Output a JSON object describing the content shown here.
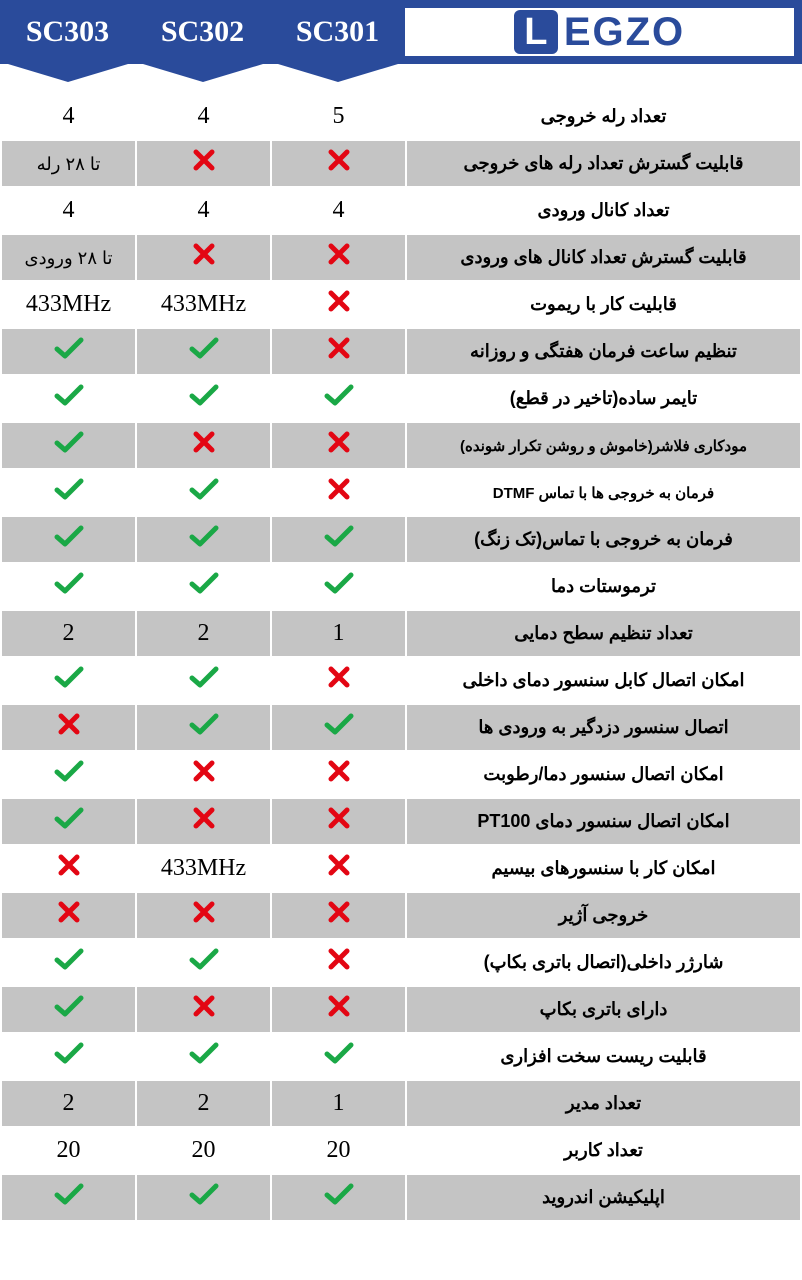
{
  "header": {
    "models": [
      "SC303",
      "SC302",
      "SC301"
    ],
    "brand_initial": "L",
    "brand_rest": "EGZO"
  },
  "colors": {
    "header_bg": "#2a4b9b",
    "grey_row": "#c4c4c4",
    "white_row": "#ffffff",
    "check": "#1aa846",
    "cross": "#e30613"
  },
  "rows": [
    {
      "bg": "white",
      "feature": "تعداد رله خروجی",
      "sc303": {
        "t": "text",
        "v": "4"
      },
      "sc302": {
        "t": "text",
        "v": "4"
      },
      "sc301": {
        "t": "text",
        "v": "5"
      }
    },
    {
      "bg": "grey",
      "feature": "قابلیت گسترش تعداد رله های خروجی",
      "sc303": {
        "t": "text_fa",
        "v": "تا ۲۸ رله"
      },
      "sc302": {
        "t": "cross"
      },
      "sc301": {
        "t": "cross"
      }
    },
    {
      "bg": "white",
      "feature": "تعداد کانال ورودی",
      "sc303": {
        "t": "text",
        "v": "4"
      },
      "sc302": {
        "t": "text",
        "v": "4"
      },
      "sc301": {
        "t": "text",
        "v": "4"
      }
    },
    {
      "bg": "grey",
      "feature": "قابلیت گسترش تعداد کانال های ورودی",
      "sc303": {
        "t": "text_fa",
        "v": "تا ۲۸ ورودی"
      },
      "sc302": {
        "t": "cross"
      },
      "sc301": {
        "t": "cross"
      }
    },
    {
      "bg": "white",
      "feature": "قابلیت کار با ریموت",
      "sc303": {
        "t": "text",
        "v": "433MHz"
      },
      "sc302": {
        "t": "text",
        "v": "433MHz"
      },
      "sc301": {
        "t": "cross"
      }
    },
    {
      "bg": "grey",
      "feature": "تنظیم ساعت فرمان هفتگی و روزانه",
      "sc303": {
        "t": "check"
      },
      "sc302": {
        "t": "check"
      },
      "sc301": {
        "t": "cross"
      }
    },
    {
      "bg": "white",
      "feature": "تایمر ساده(تاخیر در قطع)",
      "sc303": {
        "t": "check"
      },
      "sc302": {
        "t": "check"
      },
      "sc301": {
        "t": "check"
      }
    },
    {
      "bg": "grey",
      "feature": "مودکاری فلاشر(خاموش و روشن تکرار شونده)",
      "small": true,
      "sc303": {
        "t": "check"
      },
      "sc302": {
        "t": "cross"
      },
      "sc301": {
        "t": "cross"
      }
    },
    {
      "bg": "white",
      "feature": "فرمان به خروجی ها با تماس DTMF",
      "small": true,
      "sc303": {
        "t": "check"
      },
      "sc302": {
        "t": "check"
      },
      "sc301": {
        "t": "cross"
      }
    },
    {
      "bg": "grey",
      "feature": "فرمان به خروجی با تماس(تک زنگ)",
      "sc303": {
        "t": "check"
      },
      "sc302": {
        "t": "check"
      },
      "sc301": {
        "t": "check"
      }
    },
    {
      "bg": "white",
      "feature": "ترموستات دما",
      "sc303": {
        "t": "check"
      },
      "sc302": {
        "t": "check"
      },
      "sc301": {
        "t": "check"
      }
    },
    {
      "bg": "grey",
      "feature": "تعداد تنظیم سطح دمایی",
      "sc303": {
        "t": "text",
        "v": "2"
      },
      "sc302": {
        "t": "text",
        "v": "2"
      },
      "sc301": {
        "t": "text",
        "v": "1"
      }
    },
    {
      "bg": "white",
      "feature": "امکان اتصال کابل سنسور دمای داخلی",
      "sc303": {
        "t": "check"
      },
      "sc302": {
        "t": "check"
      },
      "sc301": {
        "t": "cross"
      }
    },
    {
      "bg": "grey",
      "feature": "اتصال سنسور دزدگیر به ورودی ها",
      "sc303": {
        "t": "cross"
      },
      "sc302": {
        "t": "check"
      },
      "sc301": {
        "t": "check"
      }
    },
    {
      "bg": "white",
      "feature": "امکان اتصال سنسور دما/رطوبت",
      "sc303": {
        "t": "check"
      },
      "sc302": {
        "t": "cross"
      },
      "sc301": {
        "t": "cross"
      }
    },
    {
      "bg": "grey",
      "feature": "امکان اتصال سنسور دمای PT100",
      "sc303": {
        "t": "check"
      },
      "sc302": {
        "t": "cross"
      },
      "sc301": {
        "t": "cross"
      }
    },
    {
      "bg": "white",
      "feature": "امکان کار با سنسورهای بیسیم",
      "sc303": {
        "t": "cross"
      },
      "sc302": {
        "t": "text",
        "v": "433MHz"
      },
      "sc301": {
        "t": "cross"
      }
    },
    {
      "bg": "grey",
      "feature": "خروجی آژیر",
      "sc303": {
        "t": "cross"
      },
      "sc302": {
        "t": "cross"
      },
      "sc301": {
        "t": "cross"
      }
    },
    {
      "bg": "white",
      "feature": "شارژر داخلی(اتصال باتری بکاپ)",
      "sc303": {
        "t": "check"
      },
      "sc302": {
        "t": "check"
      },
      "sc301": {
        "t": "cross"
      }
    },
    {
      "bg": "grey",
      "feature": "دارای باتری بکاپ",
      "sc303": {
        "t": "check"
      },
      "sc302": {
        "t": "cross"
      },
      "sc301": {
        "t": "cross"
      }
    },
    {
      "bg": "white",
      "feature": "قابلیت ریست سخت افزاری",
      "sc303": {
        "t": "check"
      },
      "sc302": {
        "t": "check"
      },
      "sc301": {
        "t": "check"
      }
    },
    {
      "bg": "grey",
      "feature": "تعداد مدیر",
      "sc303": {
        "t": "text",
        "v": "2"
      },
      "sc302": {
        "t": "text",
        "v": "2"
      },
      "sc301": {
        "t": "text",
        "v": "1"
      }
    },
    {
      "bg": "white",
      "feature": "تعداد کاربر",
      "sc303": {
        "t": "text",
        "v": "20"
      },
      "sc302": {
        "t": "text",
        "v": "20"
      },
      "sc301": {
        "t": "text",
        "v": "20"
      }
    },
    {
      "bg": "grey",
      "feature": "اپلیکیشن اندروید",
      "sc303": {
        "t": "check"
      },
      "sc302": {
        "t": "check"
      },
      "sc301": {
        "t": "check"
      }
    }
  ]
}
